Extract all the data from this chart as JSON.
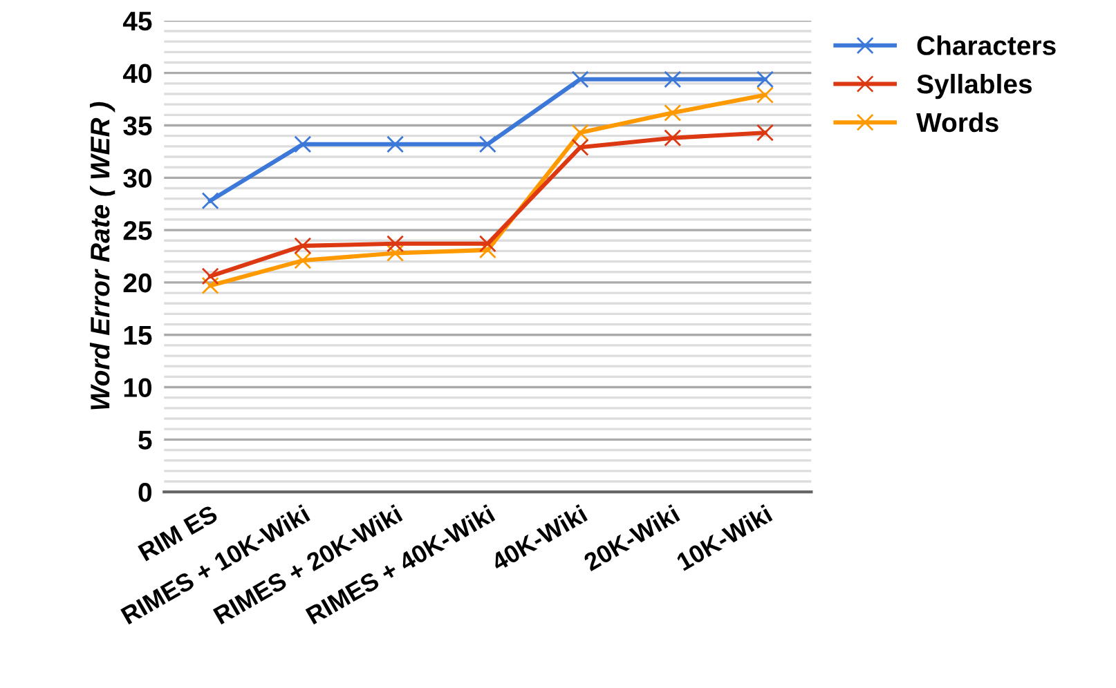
{
  "chart_data": {
    "type": "line",
    "ylabel": "Word Error Rate ( WER )",
    "categories": [
      "RIM ES",
      "RIMES + 10K-Wiki",
      "RIMES + 20K-Wiki",
      "RIMES + 40K-Wiki",
      "40K-Wiki",
      "20K-Wiki",
      "10K-Wiki"
    ],
    "series": [
      {
        "name": "Characters",
        "color": "#3c78d8",
        "values": [
          27.8,
          33.2,
          33.2,
          33.2,
          39.4,
          39.4,
          39.4
        ]
      },
      {
        "name": "Syllables",
        "color": "#dc3912",
        "values": [
          20.6,
          23.5,
          23.7,
          23.7,
          32.9,
          33.8,
          34.3
        ]
      },
      {
        "name": "Words",
        "color": "#ff9900",
        "values": [
          19.7,
          22.1,
          22.8,
          23.1,
          34.3,
          36.2,
          37.9
        ]
      }
    ],
    "ylim": [
      0,
      45
    ],
    "yticks": [
      0,
      {
        "value": 1,
        "label": null
      },
      {
        "value": 2,
        "label": null
      },
      {
        "value": 3,
        "label": null
      },
      {
        "value": 4,
        "label": null
      },
      5,
      {
        "value": 6,
        "label": null
      },
      {
        "value": 7,
        "label": null
      },
      {
        "value": 8,
        "label": null
      },
      {
        "value": 9,
        "label": null
      },
      10,
      {
        "value": 11,
        "label": null
      },
      {
        "value": 12,
        "label": null
      },
      {
        "value": 13,
        "label": null
      },
      {
        "value": 14,
        "label": null
      },
      15,
      {
        "value": 16,
        "label": null
      },
      {
        "value": 17,
        "label": null
      },
      {
        "value": 18,
        "label": null
      },
      {
        "value": 19,
        "label": null
      },
      20,
      {
        "value": 21,
        "label": null
      },
      {
        "value": 22,
        "label": null
      },
      {
        "value": 23,
        "label": null
      },
      {
        "value": 24,
        "label": null
      },
      25,
      {
        "value": 26,
        "label": null
      },
      {
        "value": 27,
        "label": null
      },
      {
        "value": 28,
        "label": null
      },
      {
        "value": 29,
        "label": null
      },
      30,
      {
        "value": 31,
        "label": null
      },
      {
        "value": 32,
        "label": null
      },
      {
        "value": 33,
        "label": null
      },
      {
        "value": 34,
        "label": null
      },
      35,
      {
        "value": 36,
        "label": null
      },
      {
        "value": 37,
        "label": null
      },
      {
        "value": 38,
        "label": null
      },
      {
        "value": 39,
        "label": null
      },
      40,
      {
        "value": 41,
        "label": null
      },
      {
        "value": 42,
        "label": null
      },
      {
        "value": 43,
        "label": null
      },
      {
        "value": 44,
        "label": null
      },
      45
    ],
    "grid": "y",
    "legend": "top right",
    "marker": "cross",
    "line_style": "solid"
  }
}
